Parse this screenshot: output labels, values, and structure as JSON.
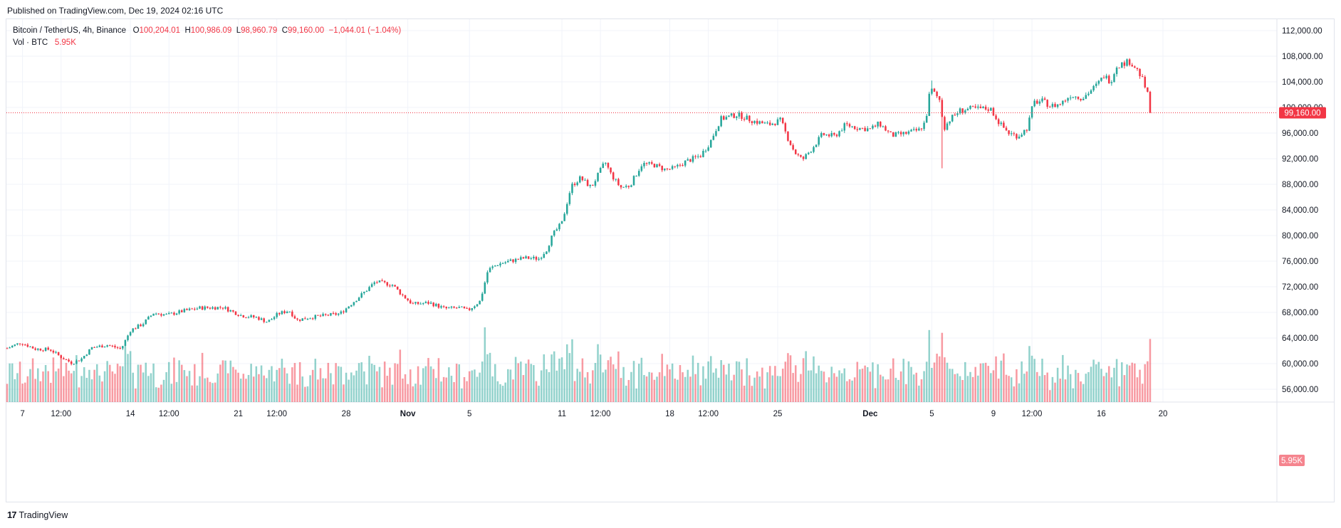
{
  "header": {
    "published": "Published on TradingView.com, Dec 19, 2024 02:16 UTC"
  },
  "legend": {
    "symbol": "Bitcoin / TetherUS, 4h, Binance",
    "o_label": "O",
    "o_value": "100,204.01",
    "h_label": "H",
    "h_value": "100,986.09",
    "l_label": "L",
    "l_value": "98,960.79",
    "c_label": "C",
    "c_value": "99,160.00",
    "change": "−1,044.01 (−1.04%)",
    "vol_label": "Vol · BTC",
    "vol_value": "5.95K"
  },
  "footer": {
    "logo_mark": "17",
    "brand": "TradingView"
  },
  "colors": {
    "up": "#26a69a",
    "down": "#f23645",
    "grid": "#f0f3fa",
    "axis_text": "#131722"
  },
  "chart_data": {
    "type": "candlestick",
    "symbol": "BTCUSDT",
    "interval": "4h",
    "exchange": "Binance",
    "price_axis": {
      "min": 52000,
      "max": 114000,
      "ticks": [
        56000,
        60000,
        64000,
        68000,
        72000,
        76000,
        80000,
        84000,
        88000,
        92000,
        96000,
        100000,
        104000,
        108000,
        112000
      ],
      "tick_labels": [
        "56,000.00",
        "60,000.00",
        "64,000.00",
        "68,000.00",
        "72,000.00",
        "76,000.00",
        "80,000.00",
        "84,000.00",
        "88,000.00",
        "92,000.00",
        "96,000.00",
        "100,000.00",
        "104,000.00",
        "108,000.00",
        "112,000.00"
      ]
    },
    "x_axis": {
      "ticks": [
        {
          "day": 7,
          "label": "7"
        },
        {
          "day": 9.5,
          "label": "12:00"
        },
        {
          "day": 14,
          "label": "14"
        },
        {
          "day": 16.5,
          "label": "12:00"
        },
        {
          "day": 21,
          "label": "21"
        },
        {
          "day": 23.5,
          "label": "12:00"
        },
        {
          "day": 28,
          "label": "28"
        },
        {
          "day": 32,
          "label": "Nov"
        },
        {
          "day": 36,
          "label": "5"
        },
        {
          "day": 42,
          "label": "11"
        },
        {
          "day": 44.5,
          "label": "12:00"
        },
        {
          "day": 49,
          "label": "18"
        },
        {
          "day": 51.5,
          "label": "12:00"
        },
        {
          "day": 56,
          "label": "25"
        },
        {
          "day": 62,
          "label": "Dec"
        },
        {
          "day": 66,
          "label": "5"
        },
        {
          "day": 70,
          "label": "9"
        },
        {
          "day": 72.5,
          "label": "12:00"
        },
        {
          "day": 77,
          "label": "16"
        },
        {
          "day": 81,
          "label": "20"
        }
      ]
    },
    "last_price": 99160.0,
    "last_price_label": "99,160.00",
    "last_volume_label": "5.95K",
    "close_path": [
      {
        "day": 6.0,
        "close": 62400
      },
      {
        "day": 6.9,
        "close": 63300
      },
      {
        "day": 7.8,
        "close": 62300
      },
      {
        "day": 8.8,
        "close": 62200
      },
      {
        "day": 9.5,
        "close": 61000
      },
      {
        "day": 10.2,
        "close": 60100
      },
      {
        "day": 10.8,
        "close": 60700
      },
      {
        "day": 11.5,
        "close": 62500
      },
      {
        "day": 12.5,
        "close": 62900
      },
      {
        "day": 13.4,
        "close": 62300
      },
      {
        "day": 14.0,
        "close": 65200
      },
      {
        "day": 14.8,
        "close": 66200
      },
      {
        "day": 15.5,
        "close": 67900
      },
      {
        "day": 16.4,
        "close": 67600
      },
      {
        "day": 17.4,
        "close": 68200
      },
      {
        "day": 18.5,
        "close": 68700
      },
      {
        "day": 20.0,
        "close": 68800
      },
      {
        "day": 21.2,
        "close": 67500
      },
      {
        "day": 22.2,
        "close": 67200
      },
      {
        "day": 22.9,
        "close": 66500
      },
      {
        "day": 23.6,
        "close": 67800
      },
      {
        "day": 24.3,
        "close": 68300
      },
      {
        "day": 24.8,
        "close": 66800
      },
      {
        "day": 25.6,
        "close": 67200
      },
      {
        "day": 26.6,
        "close": 67500
      },
      {
        "day": 27.6,
        "close": 67800
      },
      {
        "day": 28.4,
        "close": 69500
      },
      {
        "day": 29.2,
        "close": 71200
      },
      {
        "day": 29.9,
        "close": 72800
      },
      {
        "day": 31.0,
        "close": 72300
      },
      {
        "day": 31.6,
        "close": 70800
      },
      {
        "day": 32.3,
        "close": 69300
      },
      {
        "day": 33.4,
        "close": 69500
      },
      {
        "day": 34.4,
        "close": 68600
      },
      {
        "day": 35.4,
        "close": 68700
      },
      {
        "day": 35.9,
        "close": 68300
      },
      {
        "day": 36.7,
        "close": 69800
      },
      {
        "day": 37.2,
        "close": 74600
      },
      {
        "day": 37.8,
        "close": 75500
      },
      {
        "day": 38.6,
        "close": 76000
      },
      {
        "day": 39.6,
        "close": 76500
      },
      {
        "day": 40.5,
        "close": 76400
      },
      {
        "day": 41.0,
        "close": 77800
      },
      {
        "day": 41.4,
        "close": 80100
      },
      {
        "day": 42.0,
        "close": 82000
      },
      {
        "day": 42.6,
        "close": 87700
      },
      {
        "day": 43.2,
        "close": 89000
      },
      {
        "day": 43.9,
        "close": 87500
      },
      {
        "day": 44.8,
        "close": 91500
      },
      {
        "day": 45.2,
        "close": 89500
      },
      {
        "day": 45.8,
        "close": 87500
      },
      {
        "day": 46.4,
        "close": 87800
      },
      {
        "day": 47.2,
        "close": 91200
      },
      {
        "day": 48.0,
        "close": 91000
      },
      {
        "day": 48.7,
        "close": 90300
      },
      {
        "day": 49.3,
        "close": 90500
      },
      {
        "day": 50.0,
        "close": 91500
      },
      {
        "day": 51.0,
        "close": 92500
      },
      {
        "day": 51.6,
        "close": 94500
      },
      {
        "day": 52.3,
        "close": 98200
      },
      {
        "day": 53.4,
        "close": 98900
      },
      {
        "day": 54.4,
        "close": 97900
      },
      {
        "day": 55.4,
        "close": 97300
      },
      {
        "day": 56.2,
        "close": 98000
      },
      {
        "day": 56.6,
        "close": 95500
      },
      {
        "day": 57.1,
        "close": 93000
      },
      {
        "day": 57.6,
        "close": 91800
      },
      {
        "day": 58.2,
        "close": 93500
      },
      {
        "day": 58.9,
        "close": 95800
      },
      {
        "day": 59.7,
        "close": 95500
      },
      {
        "day": 60.4,
        "close": 97300
      },
      {
        "day": 61.2,
        "close": 96800
      },
      {
        "day": 62.0,
        "close": 96600
      },
      {
        "day": 62.6,
        "close": 97500
      },
      {
        "day": 63.4,
        "close": 95600
      },
      {
        "day": 64.2,
        "close": 95900
      },
      {
        "day": 65.2,
        "close": 96500
      },
      {
        "day": 65.6,
        "close": 97800
      },
      {
        "day": 65.9,
        "close": 103000
      },
      {
        "day": 66.5,
        "close": 101200
      },
      {
        "day": 66.8,
        "close": 96800
      },
      {
        "day": 67.2,
        "close": 98200
      },
      {
        "day": 67.8,
        "close": 99500
      },
      {
        "day": 68.5,
        "close": 99800
      },
      {
        "day": 69.2,
        "close": 99800
      },
      {
        "day": 69.8,
        "close": 99800
      },
      {
        "day": 70.4,
        "close": 97500
      },
      {
        "day": 71.0,
        "close": 96000
      },
      {
        "day": 71.6,
        "close": 95500
      },
      {
        "day": 72.2,
        "close": 96800
      },
      {
        "day": 72.6,
        "close": 100800
      },
      {
        "day": 73.2,
        "close": 101000
      },
      {
        "day": 73.7,
        "close": 100200
      },
      {
        "day": 74.3,
        "close": 100500
      },
      {
        "day": 75.0,
        "close": 101900
      },
      {
        "day": 75.8,
        "close": 101500
      },
      {
        "day": 76.7,
        "close": 103500
      },
      {
        "day": 77.2,
        "close": 105000
      },
      {
        "day": 77.6,
        "close": 104000
      },
      {
        "day": 78.0,
        "close": 106500
      },
      {
        "day": 78.8,
        "close": 107200
      },
      {
        "day": 79.3,
        "close": 106000
      },
      {
        "day": 79.7,
        "close": 104200
      },
      {
        "day": 80.0,
        "close": 102000
      },
      {
        "day": 80.2,
        "close": 99160
      }
    ]
  }
}
